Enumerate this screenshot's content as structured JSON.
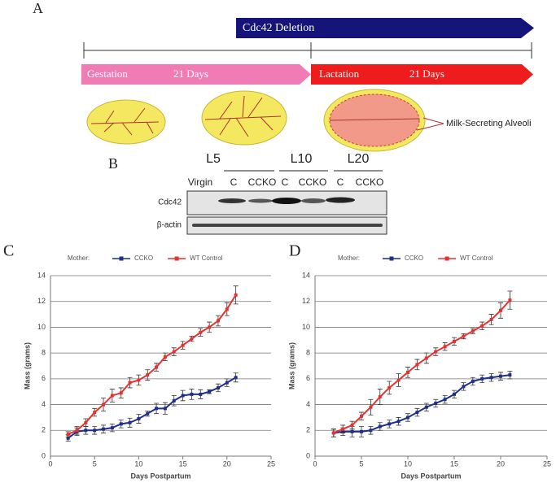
{
  "panel_a": {
    "label": "A",
    "deletion": "Cdc42 Deletion",
    "gestation": "Gestation",
    "gestation_days": "21 Days",
    "lactation": "Lactation",
    "lactation_days": "21 Days",
    "alveoli": "Milk-Secreting Alveoli"
  },
  "panel_b": {
    "label": "B",
    "groups": [
      "L5",
      "L10",
      "L20"
    ],
    "lanes": [
      "Virgin",
      "C",
      "CCKO",
      "C",
      "CCKO",
      "C",
      "CCKO"
    ],
    "rows": [
      "Cdc42",
      "β-actin"
    ]
  },
  "chart_data": [
    {
      "panel": "C",
      "type": "line",
      "legend_title": "Mother:",
      "xlabel": "Days Postpartum",
      "ylabel": "Mass (grams)",
      "grid": true,
      "x": [
        2,
        3,
        4,
        5,
        6,
        7,
        8,
        9,
        10,
        11,
        12,
        13,
        14,
        15,
        16,
        17,
        18,
        19,
        20,
        21
      ],
      "series": [
        {
          "name": "CCKO",
          "color": "#1f2f8a",
          "values": [
            1.4,
            1.9,
            2.0,
            2.0,
            2.1,
            2.2,
            2.5,
            2.6,
            2.9,
            3.3,
            3.7,
            3.7,
            4.3,
            4.7,
            4.8,
            4.8,
            5.0,
            5.3,
            5.7,
            6.1
          ],
          "errors": [
            0.25,
            0.3,
            0.3,
            0.3,
            0.3,
            0.3,
            0.3,
            0.35,
            0.35,
            0.2,
            0.4,
            0.45,
            0.4,
            0.4,
            0.4,
            0.35,
            0.15,
            0.3,
            0.3,
            0.35
          ]
        },
        {
          "name": "WT Control",
          "color": "#e8302f",
          "values": [
            1.7,
            2.0,
            2.6,
            3.4,
            4.0,
            4.7,
            4.9,
            5.7,
            5.9,
            6.3,
            6.9,
            7.7,
            8.1,
            8.6,
            9.1,
            9.6,
            10.0,
            10.5,
            11.4,
            12.5
          ],
          "errors": [
            0.2,
            0.3,
            0.3,
            0.3,
            0.5,
            0.5,
            0.4,
            0.4,
            0.4,
            0.4,
            0.3,
            0.3,
            0.3,
            0.3,
            0.2,
            0.3,
            0.4,
            0.4,
            0.5,
            0.7
          ]
        }
      ],
      "xlim": [
        0,
        25
      ],
      "xticks": [
        0,
        5,
        10,
        15,
        20,
        25
      ],
      "ylim": [
        0,
        14
      ],
      "yticks": [
        0,
        2,
        4,
        6,
        8,
        10,
        12,
        14
      ]
    },
    {
      "panel": "D",
      "type": "line",
      "legend_title": "Mother:",
      "xlabel": "Days Postpartum",
      "ylabel": "Mass (grams)",
      "grid": true,
      "x": [
        2,
        3,
        4,
        5,
        6,
        7,
        8,
        9,
        10,
        11,
        12,
        13,
        14,
        15,
        16,
        17,
        18,
        19,
        20,
        21
      ],
      "series": [
        {
          "name": "CCKO",
          "color": "#1f2f8a",
          "values": [
            1.8,
            1.9,
            1.9,
            1.9,
            2.0,
            2.3,
            2.5,
            2.7,
            3.0,
            3.4,
            3.8,
            4.1,
            4.4,
            4.8,
            5.4,
            5.8,
            6.0,
            6.1,
            6.2,
            6.3
          ],
          "errors": [
            0.3,
            0.3,
            0.4,
            0.4,
            0.3,
            0.3,
            0.3,
            0.3,
            0.3,
            0.3,
            0.3,
            0.3,
            0.3,
            0.3,
            0.3,
            0.3,
            0.3,
            0.3,
            0.3,
            0.3
          ]
        },
        {
          "name": "WT Control",
          "color": "#e8302f",
          "values": [
            1.8,
            2.1,
            2.4,
            3.1,
            3.8,
            4.6,
            5.3,
            5.9,
            6.5,
            7.1,
            7.6,
            8.1,
            8.5,
            8.9,
            9.3,
            9.7,
            10.1,
            10.6,
            11.3,
            12.1
          ],
          "errors": [
            0.3,
            0.3,
            0.3,
            0.3,
            0.6,
            0.6,
            0.5,
            0.5,
            0.4,
            0.4,
            0.4,
            0.3,
            0.3,
            0.3,
            0.2,
            0.2,
            0.3,
            0.4,
            0.6,
            0.7
          ]
        }
      ],
      "xlim": [
        0,
        25
      ],
      "xticks": [
        0,
        5,
        10,
        15,
        20,
        25
      ],
      "ylim": [
        0,
        14
      ],
      "yticks": [
        0,
        2,
        4,
        6,
        8,
        10,
        12,
        14
      ]
    }
  ]
}
